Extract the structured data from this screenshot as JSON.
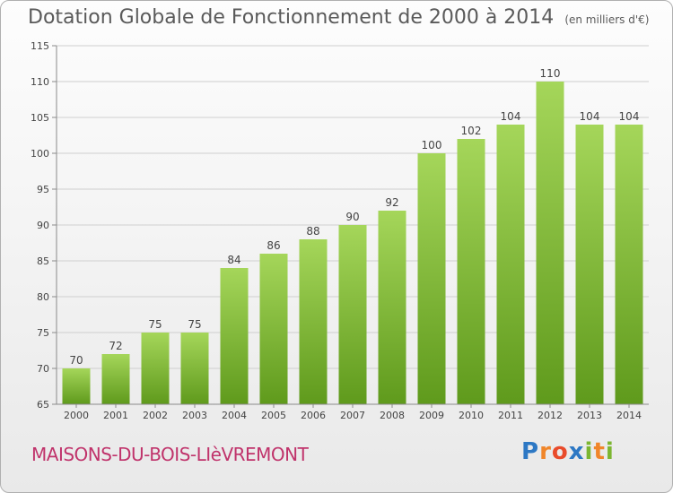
{
  "title": "Dotation Globale de Fonctionnement de 2000 à 2014",
  "unit_note": "(en milliers d'€)",
  "town": "MAISONS-DU-BOIS-LIèVREMONT",
  "brand": {
    "letters": [
      "P",
      "r",
      "o",
      "x",
      "i",
      "t",
      "i"
    ],
    "colors": [
      "#2d78c4",
      "#f0862a",
      "#e94b2b",
      "#2d78c4",
      "#7cb631",
      "#f0862a",
      "#7cb631"
    ]
  },
  "colors": {
    "bar_top": "#a5d65a",
    "bar_bottom": "#5f9a1c",
    "grid": "#cfcfcf",
    "axis": "#8a8a8a"
  },
  "chart_data": {
    "type": "bar",
    "title": "Dotation Globale de Fonctionnement de 2000 à 2014",
    "subtitle": "(en milliers d'€)",
    "categories": [
      "2000",
      "2001",
      "2002",
      "2003",
      "2004",
      "2005",
      "2006",
      "2007",
      "2008",
      "2009",
      "2010",
      "2011",
      "2012",
      "2013",
      "2014"
    ],
    "values": [
      70,
      72,
      75,
      75,
      84,
      86,
      88,
      90,
      92,
      100,
      102,
      104,
      110,
      104,
      104
    ],
    "xlabel": "",
    "ylabel": "",
    "ylim": [
      65,
      115
    ],
    "yticks": [
      65,
      70,
      75,
      80,
      85,
      90,
      95,
      100,
      105,
      110,
      115
    ],
    "grid": true,
    "legend": "none"
  }
}
